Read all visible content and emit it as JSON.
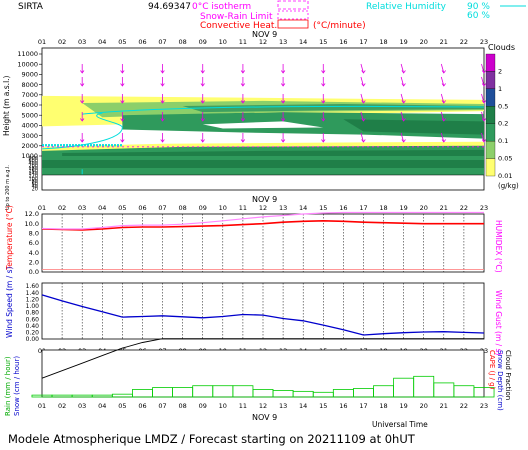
{
  "header": {
    "site": "SIRTA",
    "coords": "94.69347",
    "iso_label": "0°C isotherm",
    "snow_rain_label": "Snow-Rain Limit",
    "convective_label": "Convective Heat.",
    "convective_unit": "(°C/minute)",
    "rh_label": "Relative Humidity",
    "rh_90": "90 %",
    "rh_60": "60 %",
    "iso_color": "#ff00ff",
    "snow_color": "#ff00ff",
    "conv_color": "#ff0000",
    "rh_color": "#00dddd"
  },
  "hours": [
    "01",
    "02",
    "03",
    "04",
    "05",
    "06",
    "07",
    "08",
    "09",
    "10",
    "11",
    "12",
    "13",
    "14",
    "15",
    "16",
    "17",
    "18",
    "19",
    "20",
    "21",
    "22",
    "23"
  ],
  "date_label": "NOV  9",
  "footer": {
    "text": "Modele Atmospherique LMDZ / Forecast starting on 20211109 at 0hUT",
    "universal_time": "Universal Time"
  },
  "chart_data": [
    {
      "type": "heatmap",
      "name": "clouds",
      "ylabel": "Height  (m a.s.l.)",
      "ylabel_low": "Up to 200 m a.g.l.",
      "yticks_upper": [
        "11000",
        "10000",
        "9000",
        "8000",
        "7000",
        "6000",
        "5000",
        "4000",
        "3000",
        "2000",
        "1000"
      ],
      "yticks_lower": [
        "800",
        "600",
        "400",
        "200",
        "180",
        "160",
        "140",
        "120",
        "100",
        "80",
        "60",
        "40",
        "20"
      ],
      "legend": {
        "title": "Clouds",
        "unit": "(g/kg)",
        "labels": [
          "2",
          "1",
          "0.5",
          "0.2",
          "0.1",
          "0.05",
          "0.01"
        ]
      },
      "layers": [
        {
          "band": "upper",
          "from_hour": 1,
          "to_hour": 23,
          "base_m": 4500,
          "top_m": 6700,
          "level": "light"
        },
        {
          "band": "mid",
          "from_hour": 5,
          "to_hour": 23,
          "base_m": 3000,
          "top_m": 5200,
          "level": "medium"
        },
        {
          "band": "low",
          "from_hour": 1,
          "to_hour": 23,
          "base_m": 600,
          "top_m": 1800,
          "level": "medium"
        }
      ]
    },
    {
      "type": "line",
      "name": "temperature",
      "ylabel": "Temperature (°C)",
      "ylabel_right": "HUMIDEX (°C)",
      "yticks": [
        "12.0",
        "10.0",
        "8.0",
        "6.0",
        "4.0",
        "2.0",
        "0.0"
      ],
      "ylim": [
        0,
        12
      ],
      "x": [
        1,
        2,
        3,
        4,
        5,
        6,
        7,
        8,
        9,
        10,
        11,
        12,
        13,
        14,
        15,
        16,
        17,
        18,
        19,
        20,
        21,
        22,
        23
      ],
      "series": [
        {
          "name": "",
          "color": "#ff0000",
          "values": [
            8.9,
            8.8,
            8.7,
            8.9,
            9.2,
            9.3,
            9.3,
            9.4,
            9.5,
            9.6,
            9.8,
            10.0,
            10.3,
            10.5,
            10.6,
            10.5,
            10.3,
            10.2,
            10.1,
            10.0,
            10.0,
            10.0,
            10.0
          ]
        },
        {
          "name": "",
          "color": "#ff88ff",
          "values": [
            9.0,
            8.9,
            8.9,
            9.2,
            9.6,
            9.7,
            9.7,
            9.9,
            10.2,
            10.6,
            11.0,
            11.4,
            11.7,
            12.0,
            12.2,
            12.3,
            12.3,
            12.3,
            12.3,
            12.3,
            12.3,
            12.3,
            12.3
          ]
        }
      ]
    },
    {
      "type": "line",
      "name": "wind",
      "ylabel": "Wind Speed (m / s)",
      "ylabel_right": "Wind Gust (m / s)",
      "yticks": [
        "1.60",
        "1.40",
        "1.20",
        "1.00",
        "0.80",
        "0.60",
        "0.40",
        "0.20",
        "0.00"
      ],
      "ylim": [
        0,
        1.6
      ],
      "x": [
        1,
        2,
        3,
        4,
        5,
        6,
        7,
        8,
        9,
        10,
        11,
        12,
        13,
        14,
        15,
        16,
        17,
        18,
        19,
        20,
        21,
        22,
        23
      ],
      "series": [
        {
          "name": "",
          "color": "#0000cc",
          "values": [
            1.33,
            1.15,
            0.98,
            0.82,
            0.66,
            0.68,
            0.7,
            0.67,
            0.64,
            0.68,
            0.74,
            0.72,
            0.62,
            0.55,
            0.42,
            0.28,
            0.12,
            0.16,
            0.19,
            0.21,
            0.22,
            0.2,
            0.18
          ]
        }
      ]
    },
    {
      "type": "bar",
      "name": "precip",
      "ylabel": "Rain (mm / hour)",
      "ylabel2": "Snow (cm / hour)",
      "ylabel_right": "CAPE (J / g)",
      "ylabel_right2": "Snow Depth (cm)",
      "ylabel_right3": "Cloud Fraction",
      "x": [
        1,
        2,
        3,
        4,
        5,
        6,
        7,
        8,
        9,
        10,
        11,
        12,
        13,
        14,
        15,
        16,
        17,
        18,
        19,
        20,
        21,
        22,
        23
      ],
      "cloud_fraction": [
        0.2,
        0.28,
        0.36,
        0.44,
        0.52,
        0.58,
        0.62,
        0.62,
        0.62,
        0.62,
        0.62,
        0.62,
        0.62,
        0.62,
        0.62,
        0.62,
        0.62,
        0.62,
        0.62,
        0.62,
        0.62,
        0.62,
        0.62
      ],
      "rain": [
        0.02,
        0.02,
        0.02,
        0.02,
        0.03,
        0.08,
        0.1,
        0.1,
        0.12,
        0.12,
        0.12,
        0.08,
        0.07,
        0.06,
        0.05,
        0.08,
        0.09,
        0.12,
        0.2,
        0.22,
        0.15,
        0.12,
        0.1
      ]
    }
  ]
}
